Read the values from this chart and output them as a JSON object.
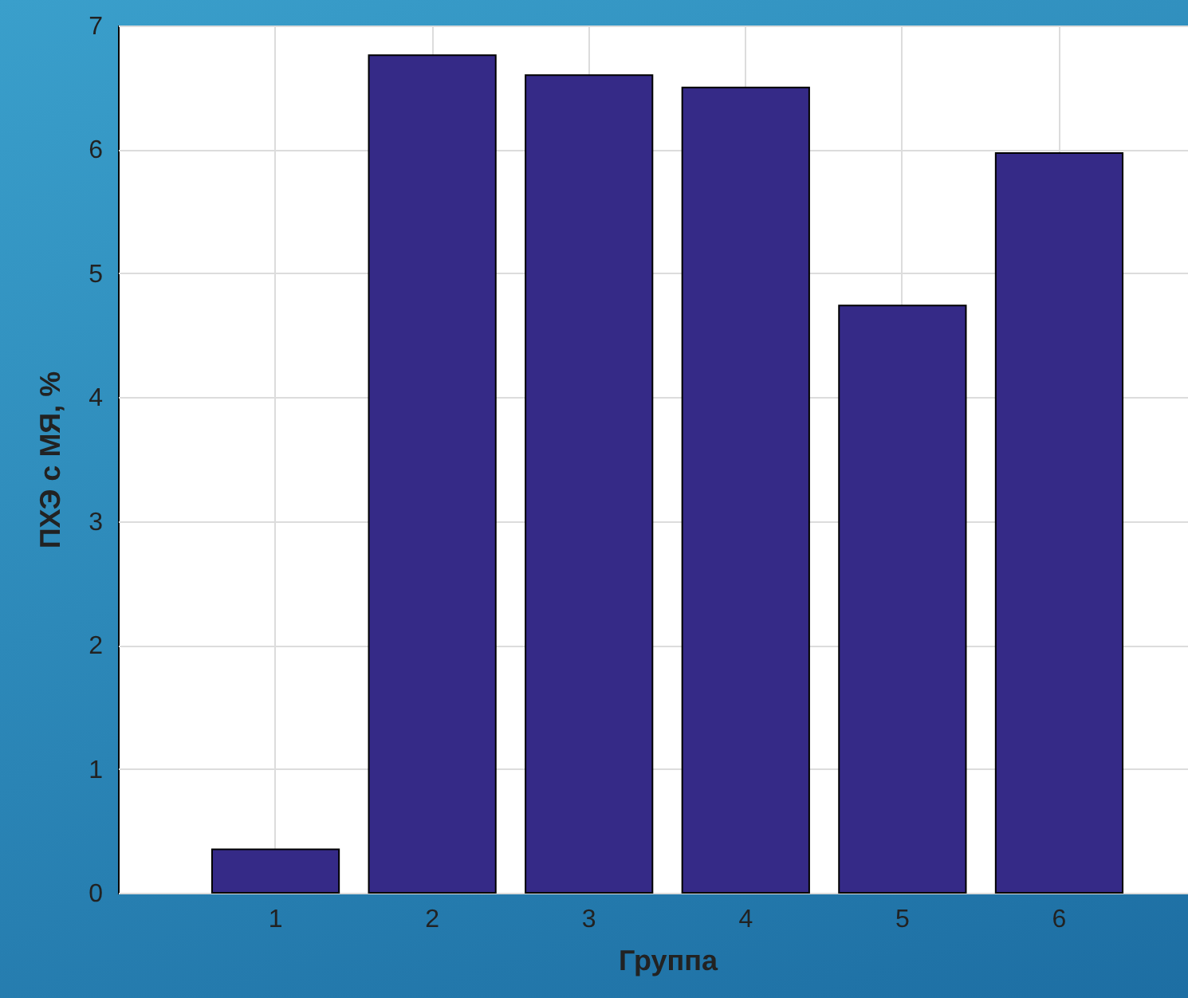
{
  "chart_data": {
    "type": "bar",
    "xlabel": "Группа",
    "ylabel": "ПХЭ с МЯ, %",
    "categories": [
      "1",
      "2",
      "3",
      "4",
      "5",
      "6"
    ],
    "values": [
      0.35,
      6.76,
      6.6,
      6.5,
      4.74,
      5.97
    ],
    "color": "#352a87",
    "ylim": [
      0,
      7
    ],
    "yticks": [
      0,
      1,
      2,
      3,
      4,
      5,
      6,
      7
    ],
    "grid": true
  }
}
